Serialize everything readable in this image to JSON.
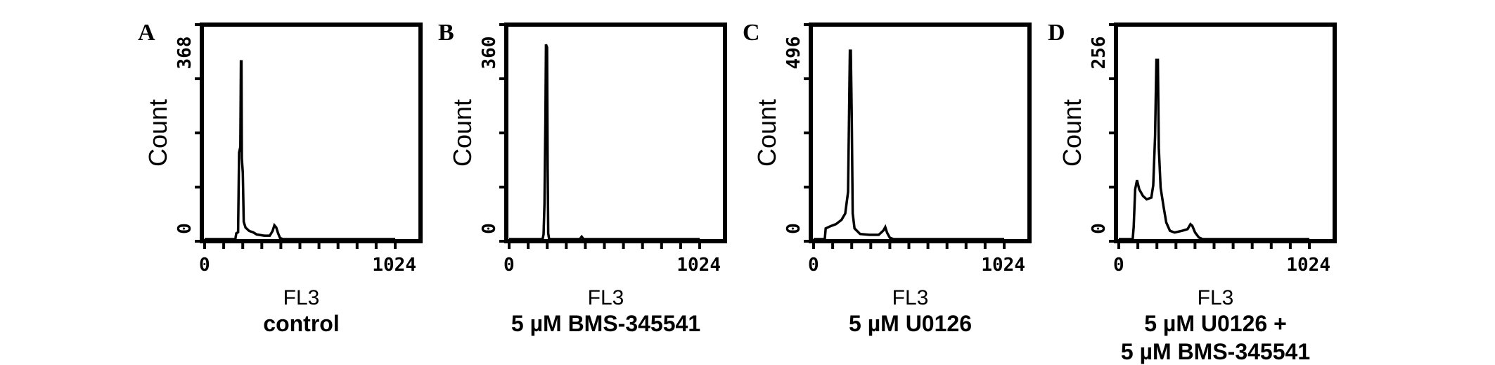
{
  "chart_data": [
    {
      "type": "line",
      "panel_label": "A",
      "ylabel": "Count",
      "xlabel": "FL3",
      "caption": [
        "control"
      ],
      "xlim": [
        0,
        1024
      ],
      "ylim": [
        0,
        368
      ],
      "x_tick_labels": [
        "0",
        "1024"
      ],
      "y_tick_labels": [
        "0",
        "368"
      ],
      "points": [
        [
          0,
          0
        ],
        [
          165,
          0
        ],
        [
          170,
          10
        ],
        [
          180,
          12
        ],
        [
          185,
          150
        ],
        [
          192,
          160
        ],
        [
          195,
          308
        ],
        [
          198,
          308
        ],
        [
          200,
          140
        ],
        [
          205,
          115
        ],
        [
          210,
          30
        ],
        [
          220,
          20
        ],
        [
          240,
          14
        ],
        [
          260,
          12
        ],
        [
          280,
          8
        ],
        [
          320,
          6
        ],
        [
          350,
          6
        ],
        [
          365,
          14
        ],
        [
          375,
          24
        ],
        [
          385,
          20
        ],
        [
          395,
          10
        ],
        [
          405,
          2
        ],
        [
          420,
          0
        ],
        [
          1024,
          0
        ]
      ]
    },
    {
      "type": "line",
      "panel_label": "B",
      "ylabel": "Count",
      "xlabel": "FL3",
      "caption": [
        "5 µM BMS-345541"
      ],
      "xlim": [
        0,
        1024
      ],
      "ylim": [
        0,
        360
      ],
      "x_tick_labels": [
        "0",
        "1024"
      ],
      "y_tick_labels": [
        "0",
        "360"
      ],
      "points": [
        [
          0,
          0
        ],
        [
          180,
          0
        ],
        [
          185,
          8
        ],
        [
          190,
          60
        ],
        [
          195,
          200
        ],
        [
          198,
          330
        ],
        [
          204,
          325
        ],
        [
          207,
          120
        ],
        [
          210,
          10
        ],
        [
          215,
          0
        ],
        [
          380,
          0
        ],
        [
          390,
          4
        ],
        [
          400,
          0
        ],
        [
          1024,
          0
        ]
      ]
    },
    {
      "type": "line",
      "panel_label": "C",
      "ylabel": "Count",
      "xlabel": "FL3",
      "caption": [
        "5 µM U0126"
      ],
      "xlim": [
        0,
        1024
      ],
      "ylim": [
        0,
        496
      ],
      "x_tick_labels": [
        "0",
        "1024"
      ],
      "y_tick_labels": [
        "0",
        "496"
      ],
      "points": [
        [
          0,
          0
        ],
        [
          60,
          0
        ],
        [
          65,
          25
        ],
        [
          90,
          30
        ],
        [
          120,
          35
        ],
        [
          150,
          45
        ],
        [
          170,
          60
        ],
        [
          185,
          110
        ],
        [
          195,
          440
        ],
        [
          200,
          440
        ],
        [
          205,
          280
        ],
        [
          210,
          60
        ],
        [
          220,
          25
        ],
        [
          250,
          12
        ],
        [
          300,
          10
        ],
        [
          350,
          10
        ],
        [
          375,
          20
        ],
        [
          385,
          28
        ],
        [
          395,
          15
        ],
        [
          410,
          3
        ],
        [
          430,
          0
        ],
        [
          1024,
          0
        ]
      ]
    },
    {
      "type": "line",
      "panel_label": "D",
      "ylabel": "Count",
      "xlabel": "FL3",
      "caption": [
        "5 µM U0126 +",
        "5 µM BMS-345541"
      ],
      "xlim": [
        0,
        1024
      ],
      "ylim": [
        0,
        256
      ],
      "x_tick_labels": [
        "0",
        "1024"
      ],
      "y_tick_labels": [
        "0",
        "256"
      ],
      "points": [
        [
          0,
          0
        ],
        [
          75,
          0
        ],
        [
          80,
          15
        ],
        [
          88,
          60
        ],
        [
          98,
          71
        ],
        [
          110,
          60
        ],
        [
          130,
          52
        ],
        [
          150,
          48
        ],
        [
          175,
          50
        ],
        [
          185,
          65
        ],
        [
          195,
          124
        ],
        [
          202,
          216
        ],
        [
          210,
          216
        ],
        [
          215,
          110
        ],
        [
          225,
          62
        ],
        [
          240,
          40
        ],
        [
          255,
          20
        ],
        [
          275,
          10
        ],
        [
          300,
          8
        ],
        [
          340,
          10
        ],
        [
          370,
          12
        ],
        [
          385,
          18
        ],
        [
          395,
          16
        ],
        [
          410,
          8
        ],
        [
          430,
          2
        ],
        [
          450,
          0
        ],
        [
          1024,
          0
        ]
      ]
    }
  ]
}
